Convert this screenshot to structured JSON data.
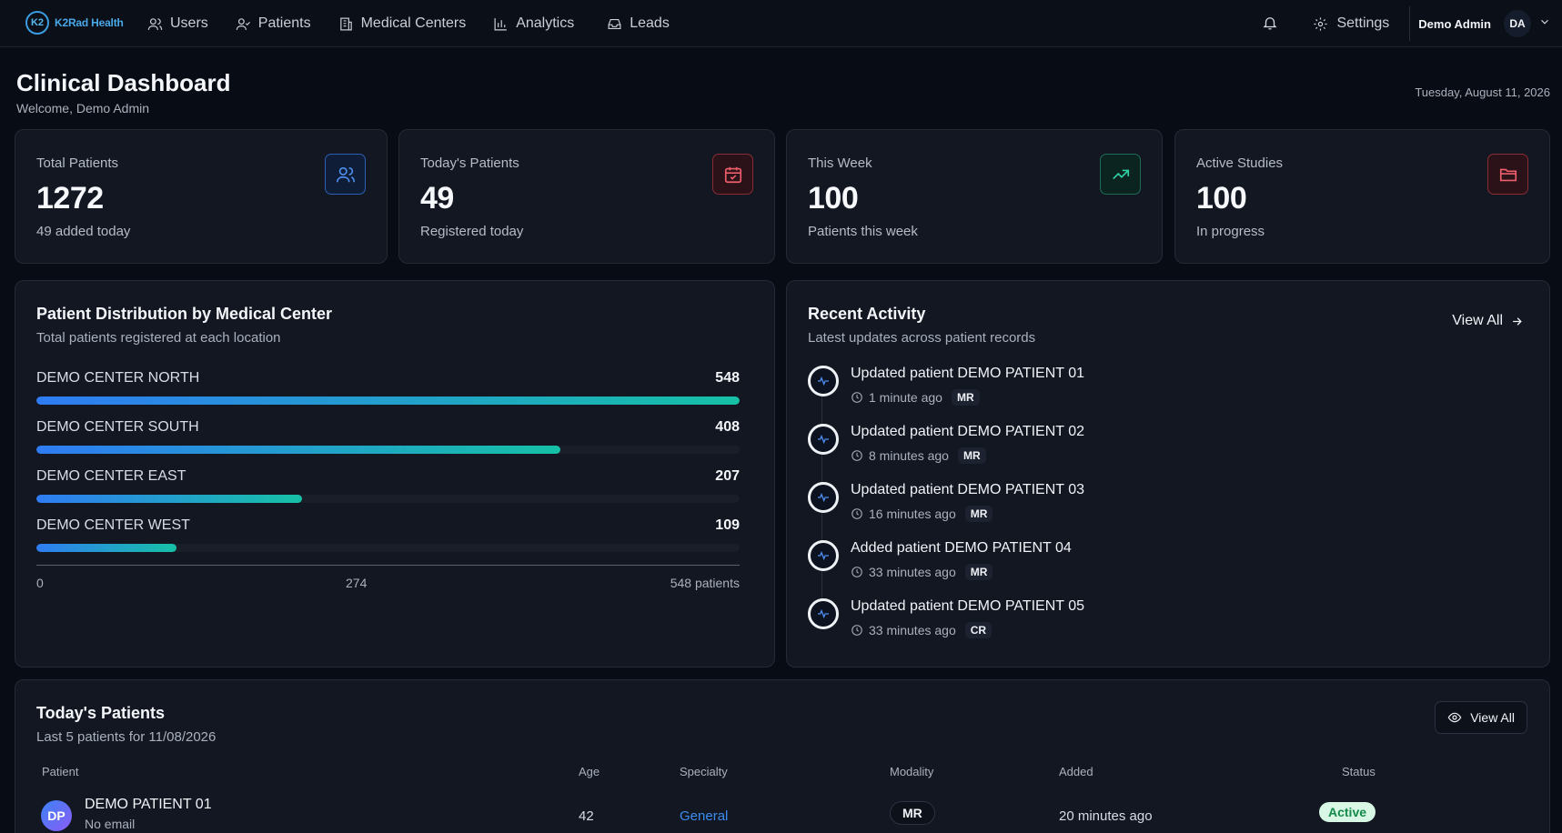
{
  "app": {
    "logo_mark": "K2",
    "logo_text": "K2Rad Health",
    "nav": [
      "Users",
      "Patients",
      "Medical Centers",
      "Analytics",
      "Leads"
    ],
    "settings_label": "Settings",
    "user_name": "Demo Admin",
    "user_initials": "DA"
  },
  "header": {
    "title": "Clinical Dashboard",
    "welcome": "Welcome, Demo Admin",
    "date": "Tuesday, August 11, 2026"
  },
  "stats": [
    {
      "label": "Total Patients",
      "value": "1272",
      "sub": "49 added today",
      "icon": "users-icon",
      "color": "#4d8ef0"
    },
    {
      "label": "Today's Patients",
      "value": "49",
      "sub": "Registered today",
      "icon": "calendar-icon",
      "color": "#ef5e6a"
    },
    {
      "label": "This Week",
      "value": "100",
      "sub": "Patients this week",
      "icon": "trending-up-icon",
      "color": "#2fd3a7"
    },
    {
      "label": "Active Studies",
      "value": "100",
      "sub": "In progress",
      "icon": "folder-icon",
      "color": "#ef5e6a"
    }
  ],
  "distribution": {
    "title": "Patient Distribution by Medical Center",
    "subtitle": "Total patients registered at each location",
    "axis_labels": [
      "0",
      "274",
      "548 patients"
    ]
  },
  "chart_data": {
    "type": "bar",
    "categories": [
      "DEMO CENTER NORTH",
      "DEMO CENTER SOUTH",
      "DEMO CENTER EAST",
      "DEMO CENTER WEST"
    ],
    "values": [
      548,
      408,
      207,
      109
    ],
    "title": "Patient Distribution by Medical Center",
    "xlabel": "patients",
    "xlim": [
      0,
      548
    ]
  },
  "activity": {
    "title": "Recent Activity",
    "subtitle": "Latest updates across patient records",
    "view_all": "View All",
    "items": [
      {
        "text": "Updated patient DEMO PATIENT 01",
        "time": "1 minute ago",
        "tag": "MR"
      },
      {
        "text": "Updated patient DEMO PATIENT 02",
        "time": "8 minutes ago",
        "tag": "MR"
      },
      {
        "text": "Updated patient DEMO PATIENT 03",
        "time": "16 minutes ago",
        "tag": "MR"
      },
      {
        "text": "Added patient DEMO PATIENT 04",
        "time": "33 minutes ago",
        "tag": "MR"
      },
      {
        "text": "Updated patient DEMO PATIENT 05",
        "time": "33 minutes ago",
        "tag": "CR"
      }
    ]
  },
  "today": {
    "title": "Today's Patients",
    "subtitle": "Last 5 patients for 11/08/2026",
    "view_all": "View All",
    "columns": [
      "Patient",
      "Age",
      "Specialty",
      "Modality",
      "Added",
      "Status"
    ],
    "rows": [
      {
        "initials": "DP",
        "name": "DEMO PATIENT 01",
        "email": "No email",
        "age": "42",
        "specialty": "General",
        "modality": "MR",
        "added": "20 minutes ago",
        "status": "Active"
      }
    ]
  }
}
